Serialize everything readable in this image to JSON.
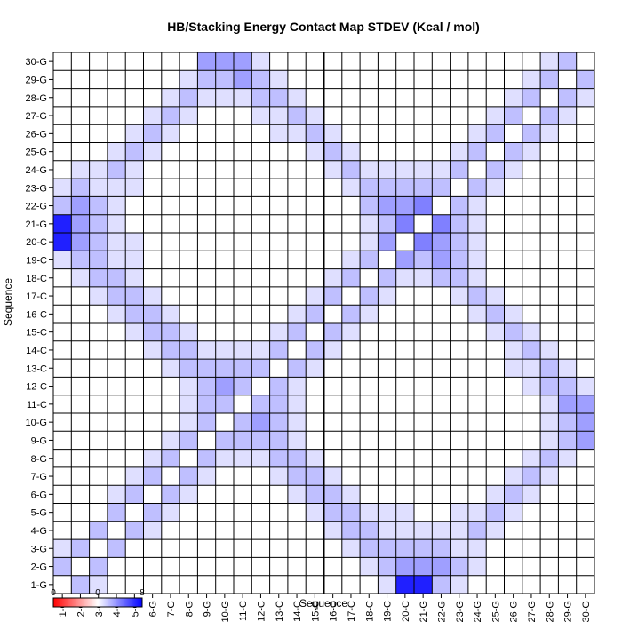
{
  "chart_data": {
    "type": "heatmap",
    "title": "HB/Stacking Energy Contact Map STDEV (Kcal / mol)",
    "xlabel": "Sequence",
    "ylabel": "Sequence",
    "labels": [
      "1-G",
      "2-G",
      "3-G",
      "4-G",
      "5-G",
      "6-G",
      "7-G",
      "8-G",
      "9-G",
      "10-G",
      "11-C",
      "12-C",
      "13-C",
      "14-C",
      "15-C",
      "16-C",
      "17-C",
      "18-C",
      "19-C",
      "20-C",
      "21-G",
      "22-G",
      "23-G",
      "24-G",
      "25-G",
      "26-G",
      "27-G",
      "28-G",
      "29-G",
      "30-G"
    ],
    "divider_after_index": 15,
    "color_scale": {
      "min": 0,
      "mid": 0,
      "max": 8,
      "low_color": "#ff0000",
      "mid_color": "#ffffff",
      "high_color": "#0000ff",
      "ticks": [
        "0",
        "0",
        "8"
      ]
    },
    "grid": true,
    "values": [
      [
        0,
        2,
        1,
        0,
        0,
        0,
        0,
        0,
        0,
        0,
        0,
        0,
        0,
        0,
        0,
        0,
        0,
        0,
        1,
        7,
        7,
        2,
        1,
        0,
        0,
        0,
        0,
        0,
        0,
        0
      ],
      [
        2,
        0,
        2,
        0,
        0,
        0,
        0,
        0,
        0,
        0,
        0,
        0,
        0,
        0,
        0,
        0,
        0,
        1,
        2,
        3,
        3,
        3,
        2,
        1,
        0,
        0,
        0,
        0,
        0,
        0
      ],
      [
        1,
        2,
        0,
        2,
        0,
        0,
        0,
        0,
        0,
        0,
        0,
        0,
        0,
        0,
        0,
        0,
        1,
        2,
        2,
        2,
        2,
        2,
        1,
        1,
        0,
        0,
        0,
        0,
        0,
        0
      ],
      [
        0,
        0,
        2,
        0,
        2,
        1,
        0,
        0,
        0,
        0,
        0,
        0,
        0,
        0,
        0,
        1,
        2,
        2,
        1,
        1,
        1,
        1,
        1,
        2,
        1,
        0,
        0,
        0,
        0,
        0
      ],
      [
        0,
        0,
        0,
        2,
        0,
        2,
        1,
        0,
        0,
        0,
        0,
        0,
        0,
        0,
        1,
        2,
        2,
        1,
        1,
        1,
        0,
        0,
        1,
        1,
        2,
        1,
        0,
        0,
        0,
        0
      ],
      [
        0,
        0,
        0,
        1,
        2,
        0,
        2,
        1,
        0,
        0,
        0,
        0,
        0,
        1,
        2,
        2,
        1,
        0,
        0,
        0,
        0,
        0,
        0,
        0,
        1,
        2,
        1,
        0,
        0,
        0
      ],
      [
        0,
        0,
        0,
        0,
        1,
        2,
        0,
        2,
        1,
        0,
        0,
        0,
        1,
        2,
        2,
        1,
        0,
        0,
        0,
        0,
        0,
        0,
        0,
        0,
        0,
        1,
        2,
        1,
        0,
        0
      ],
      [
        0,
        0,
        0,
        0,
        0,
        1,
        2,
        0,
        2,
        1,
        1,
        1,
        2,
        2,
        1,
        0,
        0,
        0,
        0,
        0,
        0,
        0,
        0,
        0,
        0,
        0,
        1,
        2,
        1,
        0
      ],
      [
        0,
        0,
        0,
        0,
        0,
        0,
        1,
        2,
        0,
        2,
        2,
        2,
        2,
        1,
        0,
        0,
        0,
        0,
        0,
        0,
        0,
        0,
        0,
        0,
        0,
        0,
        0,
        1,
        2,
        3
      ],
      [
        0,
        0,
        0,
        0,
        0,
        0,
        0,
        1,
        2,
        0,
        2,
        3,
        2,
        1,
        0,
        0,
        0,
        0,
        0,
        0,
        0,
        0,
        0,
        0,
        0,
        0,
        0,
        1,
        2,
        3
      ],
      [
        0,
        0,
        0,
        0,
        0,
        0,
        0,
        1,
        2,
        2,
        0,
        2,
        2,
        1,
        0,
        0,
        0,
        0,
        0,
        0,
        0,
        0,
        0,
        0,
        0,
        0,
        0,
        1,
        3,
        3
      ],
      [
        0,
        0,
        0,
        0,
        0,
        0,
        0,
        1,
        2,
        3,
        2,
        0,
        2,
        1,
        0,
        0,
        0,
        0,
        0,
        0,
        0,
        0,
        0,
        0,
        0,
        0,
        1,
        2,
        2,
        1
      ],
      [
        0,
        0,
        0,
        0,
        0,
        0,
        1,
        2,
        2,
        2,
        2,
        2,
        0,
        2,
        1,
        0,
        0,
        0,
        0,
        0,
        0,
        0,
        0,
        0,
        0,
        1,
        1,
        2,
        1,
        0
      ],
      [
        0,
        0,
        0,
        0,
        0,
        1,
        2,
        2,
        1,
        1,
        1,
        1,
        2,
        0,
        2,
        1,
        0,
        0,
        0,
        0,
        0,
        0,
        0,
        0,
        0,
        1,
        2,
        1,
        0,
        0
      ],
      [
        0,
        0,
        0,
        0,
        1,
        2,
        2,
        1,
        0,
        0,
        0,
        0,
        1,
        2,
        0,
        2,
        1,
        0,
        0,
        0,
        0,
        0,
        0,
        0,
        1,
        2,
        1,
        0,
        0,
        0
      ],
      [
        0,
        0,
        0,
        1,
        2,
        2,
        1,
        0,
        0,
        0,
        0,
        0,
        0,
        1,
        2,
        0,
        2,
        1,
        0,
        0,
        0,
        0,
        0,
        1,
        2,
        1,
        0,
        0,
        0,
        0
      ],
      [
        0,
        0,
        1,
        2,
        2,
        1,
        0,
        0,
        0,
        0,
        0,
        0,
        0,
        0,
        1,
        2,
        0,
        2,
        1,
        0,
        0,
        0,
        1,
        2,
        1,
        0,
        0,
        0,
        0,
        0
      ],
      [
        0,
        1,
        2,
        2,
        1,
        0,
        0,
        0,
        0,
        0,
        0,
        0,
        0,
        0,
        0,
        1,
        2,
        0,
        2,
        1,
        1,
        2,
        2,
        1,
        0,
        0,
        0,
        0,
        0,
        0
      ],
      [
        1,
        2,
        2,
        1,
        1,
        0,
        0,
        0,
        0,
        0,
        0,
        0,
        0,
        0,
        0,
        0,
        1,
        2,
        0,
        3,
        2,
        3,
        2,
        1,
        0,
        0,
        0,
        0,
        0,
        0
      ],
      [
        7,
        3,
        2,
        1,
        1,
        0,
        0,
        0,
        0,
        0,
        0,
        0,
        0,
        0,
        0,
        0,
        0,
        1,
        3,
        0,
        4,
        3,
        2,
        1,
        0,
        0,
        0,
        0,
        0,
        0
      ],
      [
        7,
        3,
        2,
        1,
        0,
        0,
        0,
        0,
        0,
        0,
        0,
        0,
        0,
        0,
        0,
        0,
        0,
        1,
        2,
        4,
        0,
        4,
        2,
        1,
        0,
        0,
        0,
        0,
        0,
        0
      ],
      [
        2,
        3,
        2,
        1,
        0,
        0,
        0,
        0,
        0,
        0,
        0,
        0,
        0,
        0,
        0,
        0,
        0,
        2,
        3,
        3,
        4,
        0,
        2,
        1,
        0,
        0,
        0,
        0,
        0,
        0
      ],
      [
        1,
        2,
        1,
        1,
        1,
        0,
        0,
        0,
        0,
        0,
        0,
        0,
        0,
        0,
        0,
        0,
        1,
        2,
        2,
        2,
        2,
        2,
        0,
        2,
        1,
        0,
        0,
        0,
        0,
        0
      ],
      [
        0,
        1,
        1,
        2,
        1,
        0,
        0,
        0,
        0,
        0,
        0,
        0,
        0,
        0,
        0,
        1,
        2,
        1,
        1,
        1,
        1,
        1,
        2,
        0,
        2,
        1,
        0,
        0,
        0,
        0
      ],
      [
        0,
        0,
        0,
        1,
        2,
        1,
        0,
        0,
        0,
        0,
        0,
        0,
        0,
        0,
        1,
        2,
        1,
        0,
        0,
        0,
        0,
        0,
        1,
        2,
        0,
        2,
        1,
        0,
        0,
        0
      ],
      [
        0,
        0,
        0,
        0,
        1,
        2,
        1,
        0,
        0,
        0,
        0,
        0,
        1,
        1,
        2,
        1,
        0,
        0,
        0,
        0,
        0,
        0,
        0,
        1,
        2,
        0,
        2,
        1,
        0,
        0
      ],
      [
        0,
        0,
        0,
        0,
        0,
        1,
        2,
        1,
        0,
        0,
        0,
        1,
        1,
        2,
        1,
        0,
        0,
        0,
        0,
        0,
        0,
        0,
        0,
        0,
        1,
        2,
        0,
        2,
        1,
        0
      ],
      [
        0,
        0,
        0,
        0,
        0,
        0,
        1,
        2,
        1,
        1,
        1,
        2,
        2,
        1,
        0,
        0,
        0,
        0,
        0,
        0,
        0,
        0,
        0,
        0,
        0,
        1,
        2,
        0,
        2,
        1
      ],
      [
        0,
        0,
        0,
        0,
        0,
        0,
        0,
        1,
        2,
        2,
        3,
        2,
        1,
        0,
        0,
        0,
        0,
        0,
        0,
        0,
        0,
        0,
        0,
        0,
        0,
        0,
        1,
        2,
        0,
        2
      ],
      [
        0,
        0,
        0,
        0,
        0,
        0,
        0,
        0,
        3,
        3,
        3,
        1,
        0,
        0,
        0,
        0,
        0,
        0,
        0,
        0,
        0,
        0,
        0,
        0,
        0,
        0,
        0,
        1,
        2,
        0
      ]
    ]
  }
}
